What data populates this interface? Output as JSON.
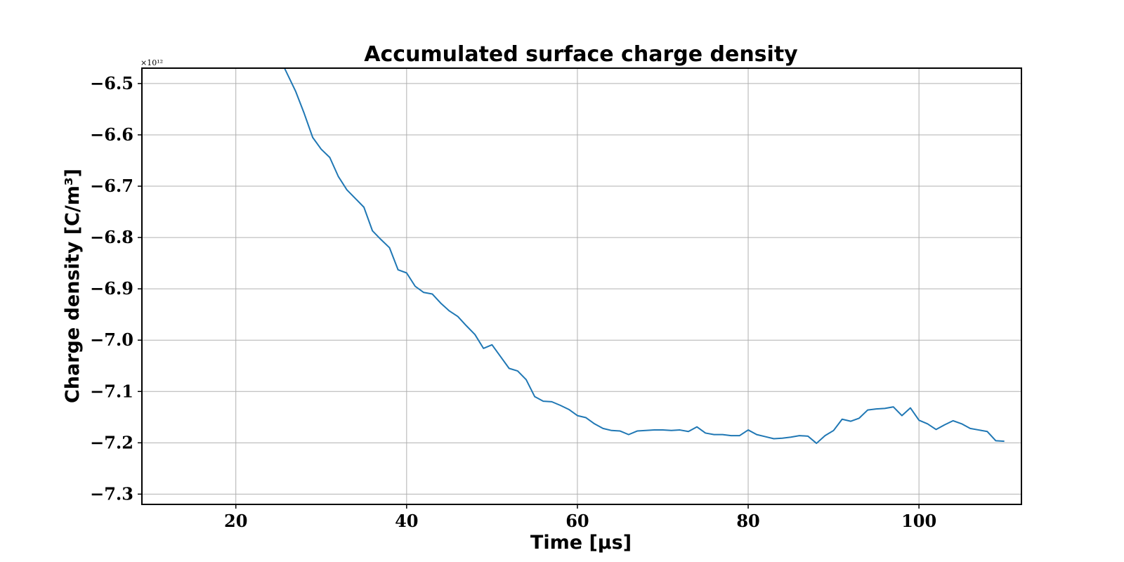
{
  "chart_data": {
    "type": "line",
    "title": "Accumulated surface charge density",
    "xlabel": "Time [μs]",
    "ylabel": "Charge density [C/m³]",
    "y_offset_text": "×10¹²",
    "xlim": [
      9,
      112
    ],
    "ylim": [
      -7.32,
      -6.47
    ],
    "xticks": [
      20,
      40,
      60,
      80,
      100
    ],
    "yticks": [
      -6.5,
      -6.6,
      -6.7,
      -6.8,
      -6.9,
      -7.0,
      -7.1,
      -7.2,
      -7.3
    ],
    "xtick_labels": [
      "20",
      "40",
      "60",
      "80",
      "100"
    ],
    "ytick_labels": [
      "−6.5",
      "−6.6",
      "−6.7",
      "−6.8",
      "−6.9",
      "−7.0",
      "−7.1",
      "−7.2",
      "−7.3"
    ],
    "grid": true,
    "series": [
      {
        "color": "#1f77b4",
        "x": [
          25.7,
          27,
          28,
          29,
          30,
          31,
          32,
          33,
          34,
          35,
          36,
          37,
          38,
          39,
          40,
          41,
          42,
          43,
          44,
          45,
          46,
          47,
          48,
          49,
          50,
          51,
          52,
          53,
          54,
          55,
          56,
          57,
          58,
          59,
          60,
          61,
          62,
          63,
          64,
          65,
          66,
          67,
          68,
          69,
          70,
          71,
          72,
          73,
          74,
          75,
          76,
          77,
          78,
          79,
          80,
          81,
          82,
          83,
          84,
          85,
          86,
          87,
          88,
          89,
          90,
          91,
          92,
          93,
          94,
          95,
          96,
          97,
          98,
          99,
          100,
          101,
          102,
          103,
          104,
          105,
          106,
          107,
          108,
          109,
          110
        ],
        "y": [
          -6.47,
          -6.515,
          -6.558,
          -6.605,
          -6.628,
          -6.644,
          -6.681,
          -6.707,
          -6.724,
          -6.741,
          -6.787,
          -6.804,
          -6.82,
          -6.863,
          -6.869,
          -6.895,
          -6.907,
          -6.91,
          -6.928,
          -6.943,
          -6.954,
          -6.972,
          -6.989,
          -7.016,
          -7.009,
          -7.032,
          -7.055,
          -7.06,
          -7.077,
          -7.11,
          -7.119,
          -7.12,
          -7.127,
          -7.135,
          -7.147,
          -7.151,
          -7.163,
          -7.172,
          -7.176,
          -7.177,
          -7.184,
          -7.177,
          -7.176,
          -7.175,
          -7.175,
          -7.176,
          -7.175,
          -7.178,
          -7.169,
          -7.181,
          -7.184,
          -7.184,
          -7.186,
          -7.186,
          -7.175,
          -7.184,
          -7.188,
          -7.192,
          -7.191,
          -7.189,
          -7.186,
          -7.187,
          -7.201,
          -7.186,
          -7.176,
          -7.154,
          -7.158,
          -7.152,
          -7.136,
          -7.134,
          -7.133,
          -7.13,
          -7.147,
          -7.132,
          -7.156,
          -7.163,
          -7.174,
          -7.165,
          -7.157,
          -7.163,
          -7.172,
          -7.175,
          -7.178,
          -7.196,
          -7.197
        ]
      }
    ]
  }
}
